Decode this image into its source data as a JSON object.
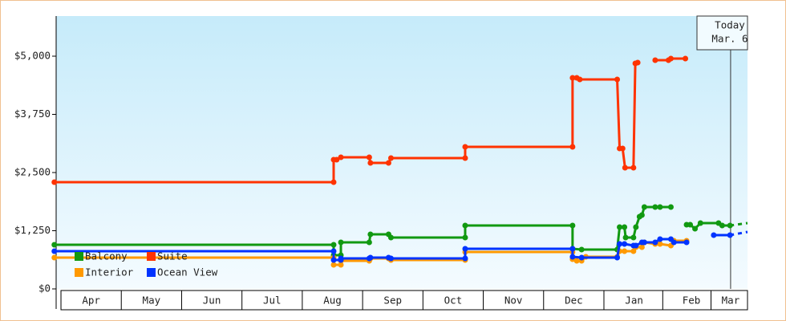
{
  "chart_data": {
    "type": "step-line",
    "xlim": [
      -0.08,
      11.38
    ],
    "xticks": [
      {
        "value": 0.5,
        "label": "Apr"
      },
      {
        "value": 1.5,
        "label": "May"
      },
      {
        "value": 2.5,
        "label": "Jun"
      },
      {
        "value": 3.5,
        "label": "Jul"
      },
      {
        "value": 4.5,
        "label": "Aug"
      },
      {
        "value": 5.5,
        "label": "Sep"
      },
      {
        "value": 6.5,
        "label": "Oct"
      },
      {
        "value": 7.5,
        "label": "Nov"
      },
      {
        "value": 8.5,
        "label": "Dec"
      },
      {
        "value": 9.5,
        "label": "Jan"
      },
      {
        "value": 10.45,
        "label": "Feb"
      },
      {
        "value": 11.1,
        "label": "Mar"
      }
    ],
    "ylim": [
      0,
      5862
    ],
    "yticks": [
      {
        "value": 0,
        "label": "$0"
      },
      {
        "value": 1250,
        "label": "$1,250"
      },
      {
        "value": 2500,
        "label": "$2,500"
      },
      {
        "value": 3750,
        "label": "$3,750"
      },
      {
        "value": 5000,
        "label": "$5,000"
      }
    ],
    "legend": "lower left",
    "today": {
      "x": 11.1,
      "lines": [
        "Today",
        "Mar. 6"
      ]
    },
    "series": [
      {
        "name": "Balcony",
        "color": "#119911",
        "x": [
          -0.11,
          4.52,
          4.52,
          4.64,
          4.64,
          5.11,
          5.13,
          5.43,
          5.47,
          6.7,
          6.7,
          8.48,
          8.48,
          8.63,
          9.22,
          9.26,
          9.34,
          9.36,
          9.49,
          9.53,
          9.59,
          9.63,
          9.67,
          9.85,
          null,
          9.93,
          10.11,
          null,
          10.37,
          10.43,
          10.51,
          10.6,
          10.9,
          10.96,
          11.09
        ],
        "values": [
          948,
          948,
          724,
          724,
          1000,
          1000,
          1172,
          1172,
          1103,
          1103,
          1362,
          1362,
          862,
          845,
          845,
          1328,
          1328,
          1103,
          1103,
          1328,
          1552,
          1586,
          1759,
          1759,
          null,
          1759,
          1759,
          null,
          1379,
          1379,
          1293,
          1414,
          1414,
          1362,
          1362
        ],
        "forecast": {
          "x": [
            11.09,
            11.38
          ],
          "values": [
            1362,
            1414
          ]
        }
      },
      {
        "name": "Suite",
        "color": "#ff3300",
        "x": [
          -0.11,
          4.52,
          4.52,
          4.57,
          4.64,
          5.11,
          5.13,
          5.43,
          5.47,
          6.7,
          6.7,
          8.48,
          8.48,
          8.55,
          8.6,
          9.22,
          9.26,
          9.31,
          9.35,
          9.49,
          9.52,
          9.56,
          null,
          9.85,
          10.07,
          10.11,
          10.35
        ],
        "values": [
          2293,
          2293,
          2776,
          2776,
          2828,
          2828,
          2707,
          2707,
          2810,
          2810,
          3052,
          3052,
          4534,
          4534,
          4500,
          4500,
          3017,
          3017,
          2603,
          2603,
          4845,
          4862,
          null,
          4914,
          4914,
          4948,
          4948
        ]
      },
      {
        "name": "Interior",
        "color": "#ff9900",
        "x": [
          -0.11,
          4.52,
          4.52,
          4.64,
          4.64,
          5.11,
          5.13,
          5.43,
          5.47,
          6.7,
          6.7,
          8.48,
          8.48,
          8.55,
          8.63,
          8.7,
          9.22,
          9.26,
          9.34,
          9.49,
          9.53,
          9.63,
          9.67,
          9.85,
          9.93,
          10.11,
          10.16,
          10.37
        ],
        "values": [
          672,
          672,
          517,
          517,
          603,
          603,
          655,
          655,
          621,
          621,
          793,
          793,
          638,
          603,
          603,
          690,
          690,
          810,
          810,
          810,
          897,
          897,
          1000,
          966,
          966,
          931,
          1034,
          1034
        ]
      },
      {
        "name": "Ocean View",
        "color": "#0033ff",
        "x": [
          -0.11,
          4.52,
          4.52,
          4.64,
          4.64,
          5.11,
          5.13,
          5.43,
          5.47,
          6.7,
          6.7,
          8.48,
          8.48,
          8.63,
          9.22,
          9.26,
          9.34,
          9.49,
          9.53,
          9.63,
          9.67,
          9.85,
          9.93,
          10.11,
          10.16,
          10.37,
          null,
          10.82,
          11.09
        ],
        "values": [
          810,
          810,
          621,
          621,
          655,
          655,
          672,
          672,
          655,
          655,
          862,
          862,
          690,
          672,
          672,
          966,
          966,
          931,
          931,
          1000,
          1000,
          1000,
          1069,
          1069,
          1000,
          1000,
          null,
          1155,
          1155
        ],
        "forecast": {
          "x": [
            11.09,
            11.38
          ],
          "values": [
            1155,
            1224
          ]
        }
      }
    ]
  }
}
